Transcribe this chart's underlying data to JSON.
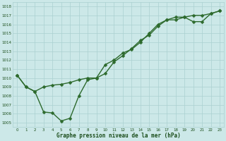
{
  "series1": {
    "x": [
      0,
      1,
      2,
      3,
      4,
      5,
      6,
      7,
      8,
      9,
      10,
      11,
      12,
      13,
      14,
      15,
      16,
      17,
      18,
      19,
      20,
      21,
      22,
      23
    ],
    "y": [
      1010.3,
      1009.0,
      1008.5,
      1009.0,
      1009.2,
      1009.3,
      1009.5,
      1009.8,
      1010.0,
      1010.0,
      1011.5,
      1012.0,
      1012.8,
      1013.2,
      1014.0,
      1015.0,
      1016.0,
      1016.5,
      1016.8,
      1016.8,
      1017.0,
      1017.0,
      1017.2,
      1017.5
    ]
  },
  "series2": {
    "x": [
      0,
      1,
      2,
      3,
      4,
      5,
      6,
      7,
      8,
      9,
      10,
      11,
      12,
      13,
      14,
      15,
      16,
      17,
      18,
      19,
      20,
      21,
      22,
      23
    ],
    "y": [
      1010.3,
      1009.0,
      1008.5,
      1006.2,
      1006.1,
      1005.2,
      1005.5,
      1008.0,
      1009.8,
      1010.0,
      1010.5,
      1011.8,
      1012.5,
      1013.3,
      1014.2,
      1014.8,
      1015.8,
      1016.5,
      1016.5,
      1016.8,
      1016.3,
      1016.3,
      1017.2,
      1017.5
    ]
  },
  "line_color": "#2d6a2d",
  "marker_color": "#2d6a2d",
  "bg_color": "#cce8e8",
  "grid_color": "#aad0d0",
  "text_color": "#1a4d1a",
  "xlabel": "Graphe pression niveau de la mer (hPa)",
  "ylim": [
    1004.5,
    1018.5
  ],
  "xlim": [
    -0.5,
    23.5
  ],
  "yticks": [
    1005,
    1006,
    1007,
    1008,
    1009,
    1010,
    1011,
    1012,
    1013,
    1014,
    1015,
    1016,
    1017,
    1018
  ],
  "xticks": [
    0,
    1,
    2,
    3,
    4,
    5,
    6,
    7,
    8,
    9,
    10,
    11,
    12,
    13,
    14,
    15,
    16,
    17,
    18,
    19,
    20,
    21,
    22,
    23
  ],
  "marker_size": 2.5,
  "line_width": 1.0
}
